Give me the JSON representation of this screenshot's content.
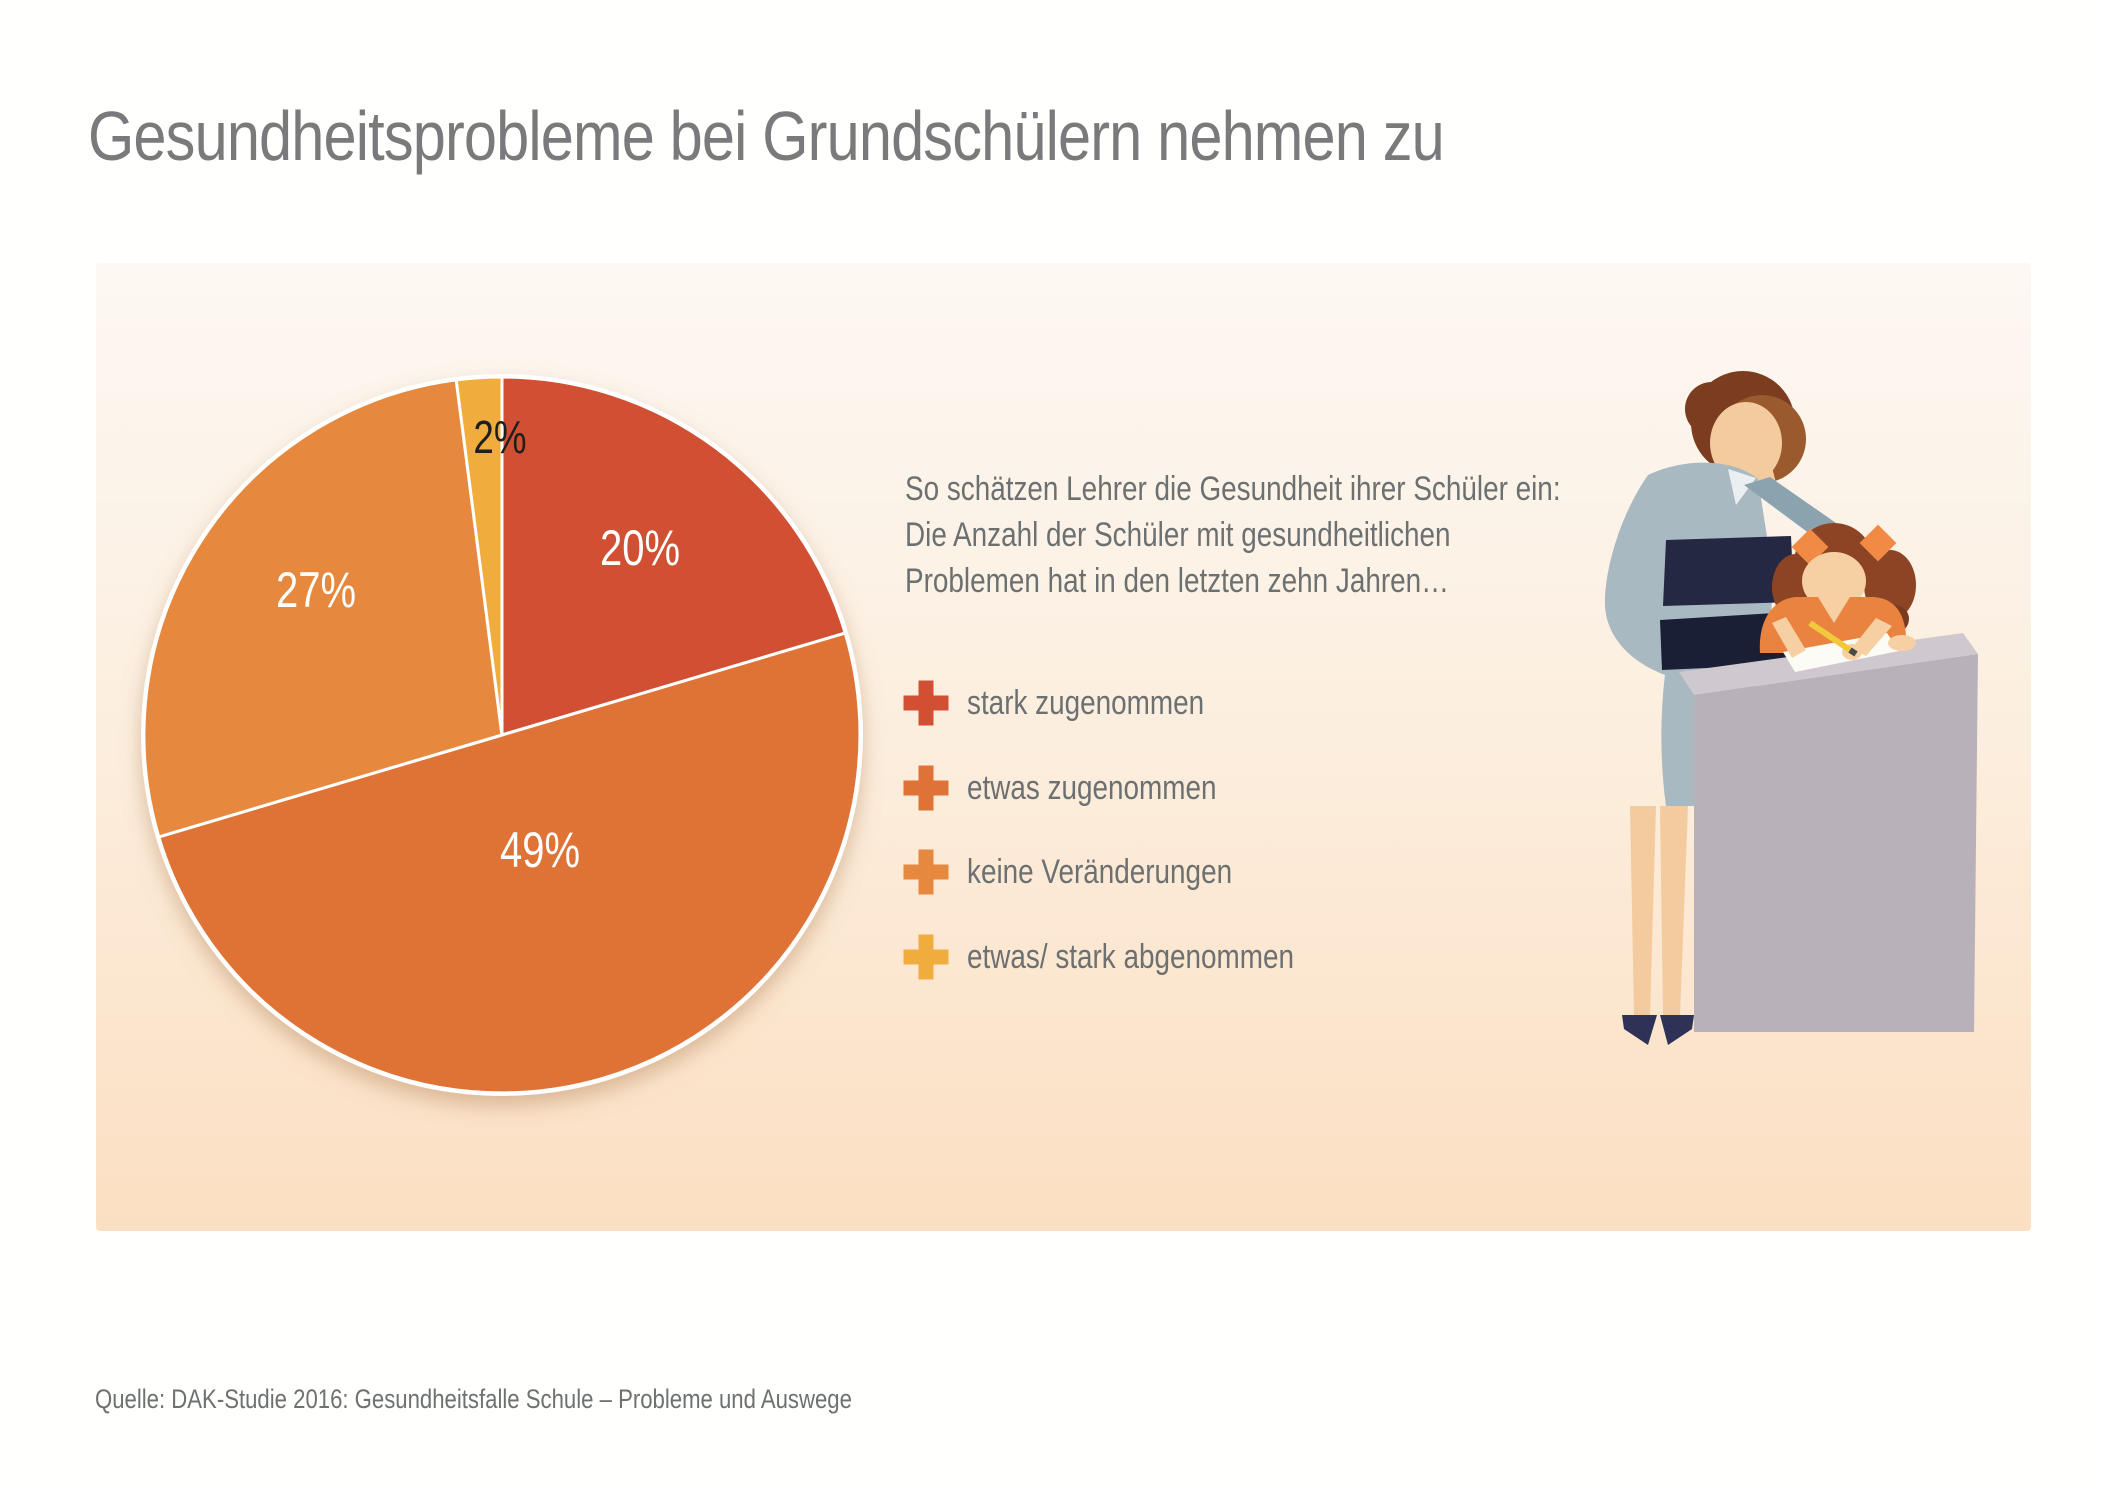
{
  "page": {
    "title": "Gesundheitsprobleme bei Grundschülern nehmen zu",
    "source": "Quelle: DAK-Studie 2016: Gesundheitsfalle Schule – Probleme und Auswege"
  },
  "panel": {
    "intro": {
      "line1": "So schätzen Lehrer die Gesundheit ihrer Schüler ein:",
      "line2": "Die Anzahl der Schüler mit gesundheitlichen",
      "line3": "Problemen hat in den letzten zehn Jahren…"
    },
    "legend": {
      "items": [
        {
          "label": "stark zugenommen"
        },
        {
          "label": "etwas zugenommen"
        },
        {
          "label": "keine Veränderungen"
        },
        {
          "label": "etwas/ stark abgenommen"
        }
      ]
    }
  },
  "chart_data": {
    "type": "pie",
    "title": "So schätzen Lehrer die Gesundheit ihrer Schüler ein: Die Anzahl der Schüler mit gesundheitlichen Problemen hat in den letzten zehn Jahren…",
    "categories": [
      "stark zugenommen",
      "etwas zugenommen",
      "keine Veränderungen",
      "etwas/ stark abgenommen"
    ],
    "values": [
      20,
      49,
      27,
      2
    ],
    "data_labels": [
      "20%",
      "49%",
      "27%",
      "2%"
    ],
    "colors": [
      "#d14f33",
      "#df7236",
      "#e6883e",
      "#f0ad3e"
    ],
    "start_angle_deg": 0,
    "direction": "clockwise",
    "legend_position": "right",
    "unit": "%"
  }
}
